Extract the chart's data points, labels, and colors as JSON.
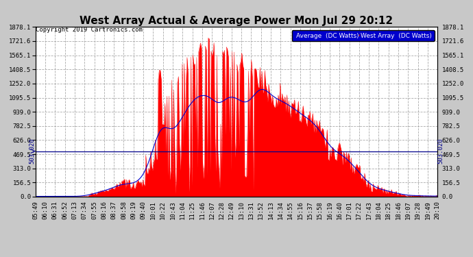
{
  "title": "West Array Actual & Average Power Mon Jul 29 20:12",
  "copyright": "Copyright 2019 Cartronics.com",
  "legend_avg_label": "Average  (DC Watts)",
  "legend_west_label": "West Array  (DC Watts)",
  "legend_avg_bg": "#0000cc",
  "legend_west_bg": "#cc0000",
  "y_ticks": [
    0.0,
    156.5,
    313.0,
    469.5,
    626.0,
    782.5,
    939.0,
    1095.5,
    1252.0,
    1408.5,
    1565.1,
    1721.6,
    1878.1
  ],
  "hline_value": 503.02,
  "hline_label": "503.020",
  "background_color": "#c8c8c8",
  "plot_background": "#ffffff",
  "grid_color": "#aaaaaa",
  "fill_color": "#ff0000",
  "hline_color": "#00008b",
  "title_fontsize": 11,
  "copyright_fontsize": 6.5,
  "tick_fontsize": 6.5,
  "ymax": 1878.1,
  "time_labels": [
    "05:49",
    "06:10",
    "06:31",
    "06:52",
    "07:13",
    "07:34",
    "07:55",
    "08:16",
    "08:37",
    "08:58",
    "09:19",
    "09:40",
    "10:01",
    "10:22",
    "10:43",
    "11:04",
    "11:25",
    "11:46",
    "12:07",
    "12:28",
    "12:49",
    "13:10",
    "13:31",
    "13:52",
    "14:13",
    "14:34",
    "14:55",
    "15:16",
    "15:37",
    "15:58",
    "16:19",
    "16:40",
    "17:01",
    "17:22",
    "17:43",
    "18:04",
    "18:25",
    "18:46",
    "19:07",
    "19:28",
    "19:49",
    "20:10"
  ]
}
